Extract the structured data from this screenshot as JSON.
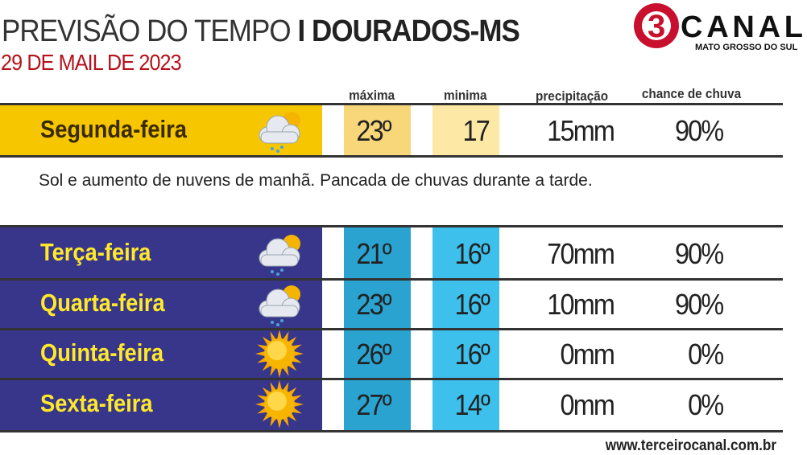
{
  "header": {
    "title_light": "PREVISÃO DO TEMPO",
    "title_bold": "I DOURADOS-MS",
    "date": "29 DE MAIL DE 2023"
  },
  "logo": {
    "number": "3",
    "name": "CANAL",
    "subtitle": "MATO GROSSO DO SUL"
  },
  "columns": {
    "max": "máxima",
    "min": "minima",
    "precip": "precipitação",
    "chance": "chance de chuva"
  },
  "colors": {
    "today_panel": "#f6c700",
    "today_max": "#f8d77a",
    "today_min": "#fde9a5",
    "week_panel": "#37368a",
    "week_max": "#2aa3d1",
    "week_min": "#3dc0ec",
    "day_text": "#ffe92a",
    "brand_red": "#c8102e"
  },
  "days": [
    {
      "name": "Segunda-feira",
      "icon": "cloud-sun-rain-icon",
      "max": "23º",
      "min": "17",
      "precip": "15mm",
      "chance": "90%"
    },
    {
      "name": "Terça-feira",
      "icon": "cloud-sun-rain-icon",
      "max": "21º",
      "min": "16º",
      "precip": "70mm",
      "chance": "90%"
    },
    {
      "name": "Quarta-feira",
      "icon": "cloud-sun-rain-icon",
      "max": "23º",
      "min": "16º",
      "precip": "10mm",
      "chance": "90%"
    },
    {
      "name": "Quinta-feira",
      "icon": "sun-icon",
      "max": "26º",
      "min": "16º",
      "precip": "0mm",
      "chance": "0%"
    },
    {
      "name": "Sexta-feira",
      "icon": "sun-icon",
      "max": "27º",
      "min": "14º",
      "precip": "0mm",
      "chance": "0%"
    }
  ],
  "description": "Sol e aumento de nuvens de manhã. Pancada de chuvas durante a tarde.",
  "footer": {
    "url": "www.terceirocanal.com.br"
  }
}
